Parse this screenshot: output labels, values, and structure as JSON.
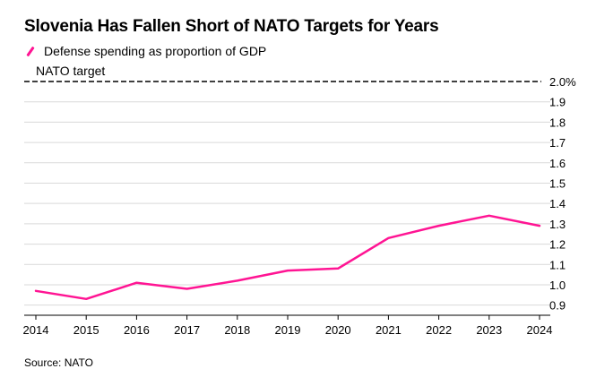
{
  "title": "Slovenia Has Fallen Short of NATO Targets for Years",
  "legend": {
    "label": "Defense spending as proportion of GDP",
    "color": "#ff1493"
  },
  "source": "Source: NATO",
  "chart_data": {
    "type": "line",
    "title": "Slovenia Has Fallen Short of NATO Targets for Years",
    "xlabel": "",
    "ylabel": "",
    "categories": [
      "2014",
      "2015",
      "2016",
      "2017",
      "2018",
      "2019",
      "2020",
      "2021",
      "2022",
      "2023",
      "2024"
    ],
    "series": [
      {
        "name": "Defense spending as proportion of GDP",
        "color": "#ff1493",
        "values": [
          0.97,
          0.93,
          1.01,
          0.98,
          1.02,
          1.07,
          1.08,
          1.23,
          1.29,
          1.34,
          1.29
        ]
      }
    ],
    "y_ticks": [
      0.9,
      1.0,
      1.1,
      1.2,
      1.3,
      1.4,
      1.5,
      1.6,
      1.7,
      1.8,
      1.9,
      2.0
    ],
    "y_tick_labels": [
      "0.9",
      "1.0",
      "1.1",
      "1.2",
      "1.3",
      "1.4",
      "1.5",
      "1.6",
      "1.7",
      "1.8",
      "1.9",
      "2.0%"
    ],
    "ylim": [
      0.85,
      2.0
    ],
    "grid": true,
    "y_axis_side": "right",
    "reference_line": {
      "label": "NATO target",
      "value": 2.0,
      "style": "dashed"
    }
  }
}
